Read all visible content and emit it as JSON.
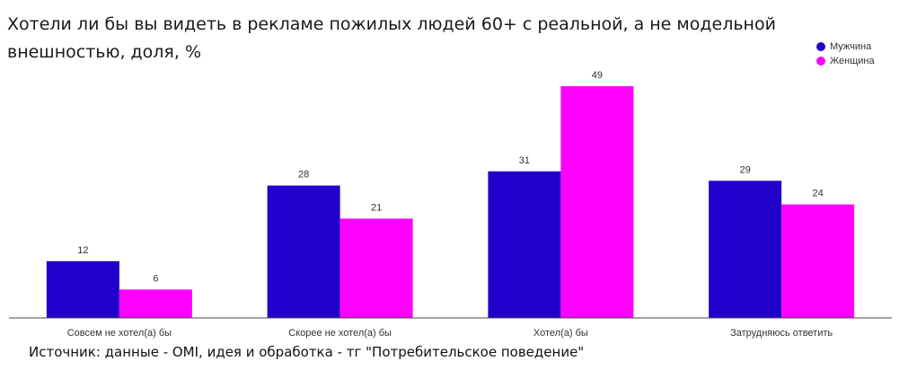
{
  "chart_data": {
    "type": "bar",
    "title": "Хотели ли бы вы видеть в рекламе пожилых людей 60+ с реальной, а не модельной внешностью, доля, %",
    "xlabel": "",
    "ylabel": "",
    "ylim": [
      0,
      55
    ],
    "grid": false,
    "legend_position": "top-right",
    "categories": [
      "Совсем не хотел(а) бы",
      "Скорее не хотел(а) бы",
      "Хотел(а) бы",
      "Затрудняюсь ответить"
    ],
    "series": [
      {
        "name": "Мужчина",
        "color": "#2200cc",
        "values": [
          12,
          28,
          31,
          29
        ]
      },
      {
        "name": "Женщина",
        "color": "#ff00ff",
        "values": [
          6,
          21,
          49,
          24
        ]
      }
    ]
  },
  "source": "Источник: данные - OMI, идея и обработка - тг \"Потребительское поведение\""
}
